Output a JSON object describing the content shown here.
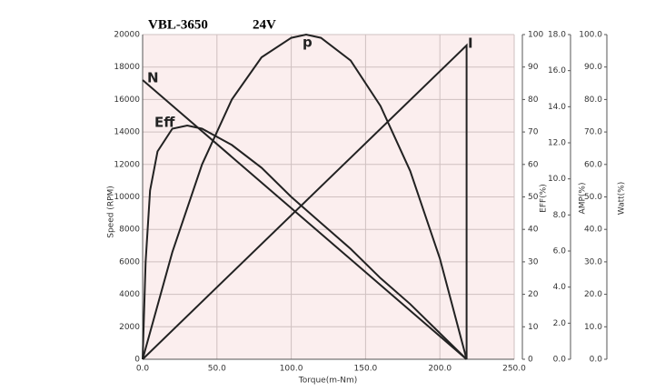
{
  "chart_data": {
    "type": "line",
    "title": "VBL-3650",
    "subtitle": "24V",
    "x_label": "Torque(m-Nm)",
    "y_label": "Speed (RPM)",
    "y2_label": "EFF(%)",
    "y3_label": "AMP(%)",
    "y4_label": "Watt(%)",
    "xlim": [
      0,
      250
    ],
    "xticks": [
      {
        "value": 0,
        "label": "0.0"
      },
      {
        "value": 50,
        "label": "50.0"
      },
      {
        "value": 100,
        "label": "100.0"
      },
      {
        "value": 150,
        "label": "150.0"
      },
      {
        "value": 200,
        "label": "200.0"
      },
      {
        "value": 250,
        "label": "250.0"
      }
    ],
    "ylim": [
      0,
      20000
    ],
    "yticks": [
      0,
      2000,
      4000,
      6000,
      8000,
      10000,
      12000,
      14000,
      16000,
      18000,
      20000
    ],
    "y2lim": [
      0,
      100
    ],
    "y2ticks": [
      0,
      10,
      20,
      30,
      40,
      50,
      60,
      70,
      80,
      90,
      100
    ],
    "y3lim": [
      0,
      18
    ],
    "y3ticks": [
      {
        "value": 0,
        "label": "0.0"
      },
      {
        "value": 2,
        "label": "2.0"
      },
      {
        "value": 4,
        "label": "4.0"
      },
      {
        "value": 6,
        "label": "6.0"
      },
      {
        "value": 8,
        "label": "8.0"
      },
      {
        "value": 10,
        "label": "10.0"
      },
      {
        "value": 12,
        "label": "12.0"
      },
      {
        "value": 14,
        "label": "14.0"
      },
      {
        "value": 16,
        "label": "16.0"
      },
      {
        "value": 18,
        "label": "18.0"
      }
    ],
    "y4lim": [
      0,
      100
    ],
    "y4ticks": [
      {
        "value": 0,
        "label": "0.0"
      },
      {
        "value": 10,
        "label": "10.0"
      },
      {
        "value": 20,
        "label": "20.0"
      },
      {
        "value": 30,
        "label": "30.0"
      },
      {
        "value": 40,
        "label": "40.0"
      },
      {
        "value": 50,
        "label": "50.0"
      },
      {
        "value": 60,
        "label": "60.0"
      },
      {
        "value": 70,
        "label": "70.0"
      },
      {
        "value": 80,
        "label": "80.0"
      },
      {
        "value": 90,
        "label": "90.0"
      },
      {
        "value": 100,
        "label": "100.0"
      }
    ],
    "grid": true,
    "background": "#fbeeee",
    "grid_color": "#cfc0c0",
    "series": [
      {
        "name": "N",
        "color": "#222",
        "axis": "y",
        "x": [
          0,
          218
        ],
        "values": [
          17200,
          0
        ]
      },
      {
        "name": "Eff",
        "color": "#222",
        "axis": "y2",
        "x": [
          0,
          2,
          5,
          10,
          20,
          30,
          40,
          60,
          80,
          100,
          120,
          140,
          160,
          180,
          200,
          218
        ],
        "values": [
          0,
          30,
          52,
          64,
          71,
          72,
          71,
          66,
          59,
          50,
          42,
          34,
          25,
          17,
          8,
          0
        ]
      },
      {
        "name": "p",
        "color": "#222",
        "axis": "y4",
        "x": [
          0,
          20,
          40,
          60,
          80,
          100,
          110,
          120,
          140,
          160,
          180,
          200,
          218
        ],
        "values": [
          0,
          33,
          60,
          80,
          93,
          99,
          100,
          99,
          92,
          78,
          58,
          31,
          0
        ]
      },
      {
        "name": "I",
        "color": "#222",
        "axis": "y3",
        "x": [
          0,
          218,
          218
        ],
        "values": [
          0,
          17.4,
          0
        ]
      }
    ]
  }
}
